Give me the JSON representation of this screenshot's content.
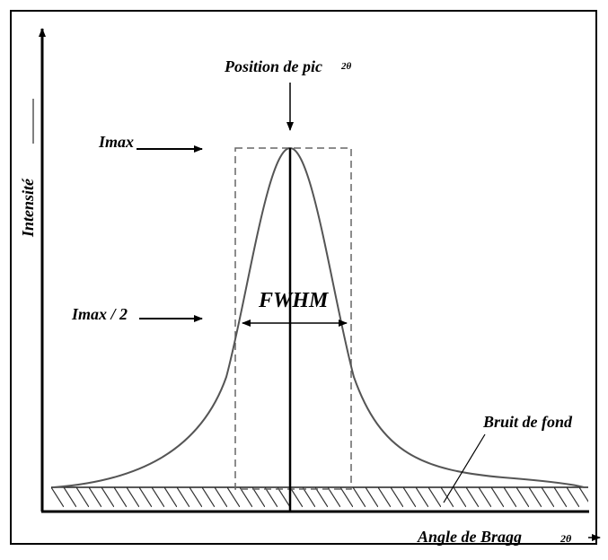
{
  "labels": {
    "peak_position": "Position de pic",
    "peak_position_symbol": "2θ",
    "imax": "Imax",
    "imax_half": "Imax / 2",
    "fwhm": "FWHM",
    "background": "Bruit de fond",
    "x_axis": "Angle de Bragg",
    "x_axis_symbol": "2θ",
    "y_axis": "Intensité"
  }
}
